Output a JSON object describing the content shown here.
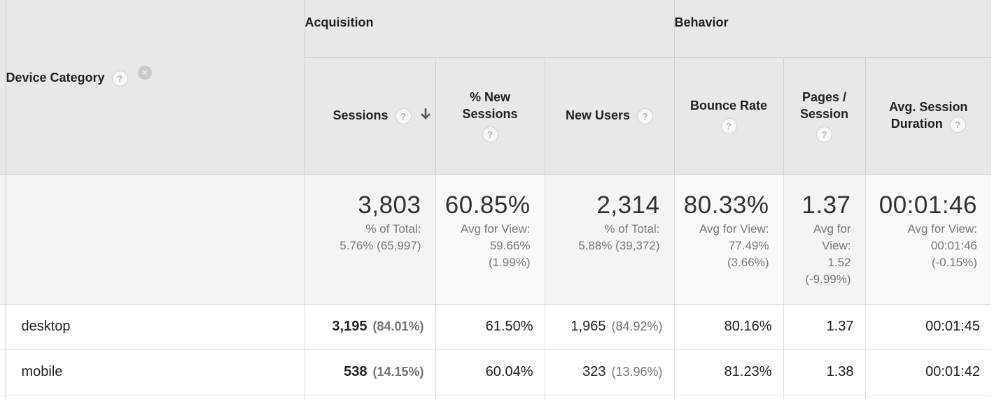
{
  "header": {
    "groups": {
      "acquisition": "Acquisition",
      "behavior": "Behavior"
    },
    "dimension": "Device Category",
    "help_glyph": "?",
    "clear_glyph": "×",
    "columns": {
      "sessions": "Sessions",
      "new_sessions_line1": "% New",
      "new_sessions_line2": "Sessions",
      "new_users": "New Users",
      "bounce_rate": "Bounce Rate",
      "pages_line1": "Pages /",
      "pages_line2": "Session",
      "duration_line1": "Avg. Session",
      "duration_line2": "Duration"
    }
  },
  "totals": {
    "sessions": {
      "value": "3,803",
      "line1": "% of Total:",
      "line2": "5.76% (65,997)"
    },
    "new_sessions": {
      "value": "60.85%",
      "line1": "Avg for View:",
      "line2": "59.66%",
      "line3": "(1.99%)"
    },
    "new_users": {
      "value": "2,314",
      "line1": "% of Total:",
      "line2": "5.88% (39,372)"
    },
    "bounce_rate": {
      "value": "80.33%",
      "line1": "Avg for View:",
      "line2": "77.49%",
      "line3": "(3.66%)"
    },
    "pages": {
      "value": "1.37",
      "line1": "Avg for",
      "line2": "View:",
      "line3": "1.52",
      "line4": "(-9.99%)"
    },
    "duration": {
      "value": "00:01:46",
      "line1": "Avg for View:",
      "line2": "00:01:46",
      "line3": "(-0.15%)"
    }
  },
  "rows": [
    {
      "device": "desktop",
      "sessions": "3,195",
      "sessions_pct": "(84.01%)",
      "new_sessions": "61.50%",
      "new_users": "1,965",
      "new_users_pct": "(84.92%)",
      "bounce_rate": "80.16%",
      "pages": "1.37",
      "duration": "00:01:45"
    },
    {
      "device": "mobile",
      "sessions": "538",
      "sessions_pct": "(14.15%)",
      "new_sessions": "60.04%",
      "new_users": "323",
      "new_users_pct": "(13.96%)",
      "bounce_rate": "81.23%",
      "pages": "1.38",
      "duration": "00:01:42"
    }
  ],
  "icons": {
    "help": "help-circle-icon",
    "clear": "close-circle-icon",
    "sort": "arrow-down-icon"
  },
  "colors": {
    "header_bg": "#e8e8e8",
    "totals_bg": "#f4f4f4",
    "muted_text": "#7a7a7a"
  }
}
